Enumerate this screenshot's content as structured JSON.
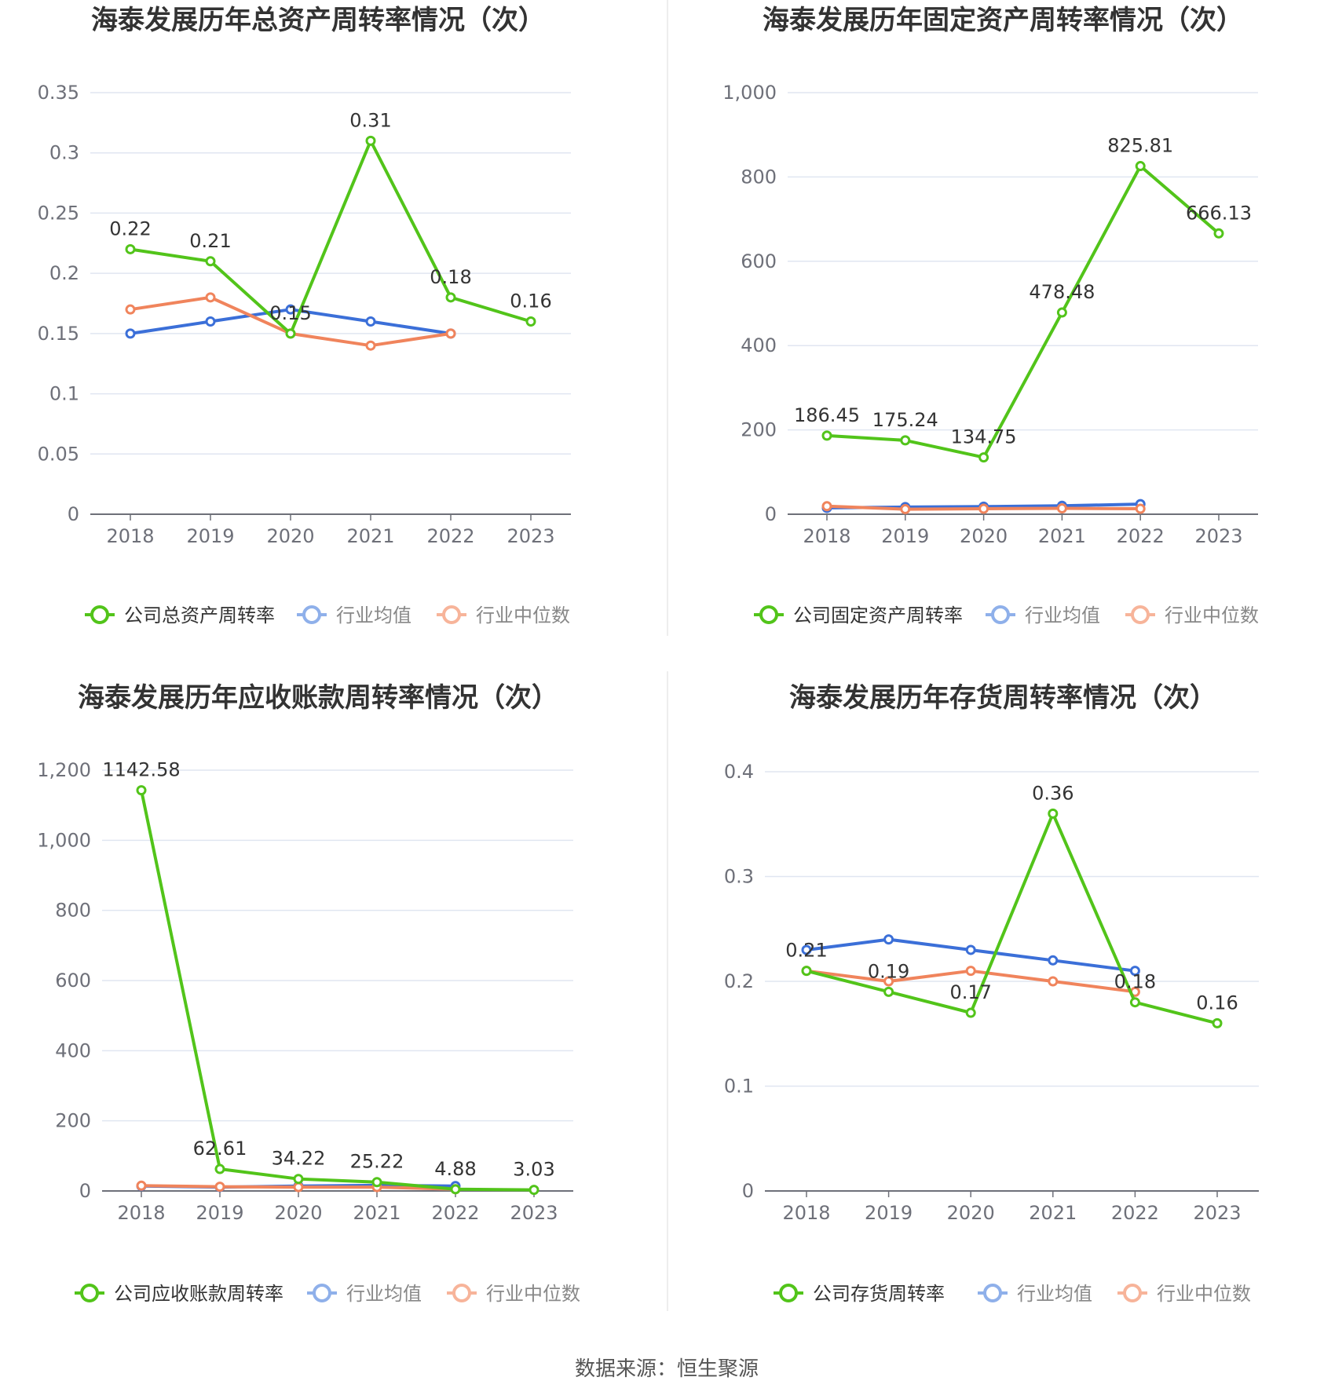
{
  "source_label": "数据来源：恒生聚源",
  "colors": {
    "company": "#52c41a",
    "avg": "#3b6fd8",
    "median": "#f0845c",
    "grid": "#e0e6f1",
    "axis": "#6e7079"
  },
  "chart_data": [
    {
      "type": "line",
      "title": "海泰发展历年总资产周转率情况（次）",
      "categories": [
        "2018",
        "2019",
        "2020",
        "2021",
        "2022",
        "2023"
      ],
      "y_ticks": [
        "0",
        "0.05",
        "0.1",
        "0.15",
        "0.2",
        "0.25",
        "0.3",
        "0.35"
      ],
      "ylim": [
        0,
        0.35
      ],
      "series": [
        {
          "name": "公司总资产周转率",
          "role": "company",
          "values": [
            0.22,
            0.21,
            0.15,
            0.31,
            0.18,
            0.16
          ],
          "labels": [
            "0.22",
            "0.21",
            "0.15",
            "0.31",
            "0.18",
            "0.16"
          ]
        },
        {
          "name": "行业均值",
          "role": "avg",
          "values": [
            0.15,
            0.16,
            0.17,
            0.16,
            0.15,
            null
          ]
        },
        {
          "name": "行业中位数",
          "role": "median",
          "values": [
            0.17,
            0.18,
            0.15,
            0.14,
            0.15,
            null
          ]
        }
      ],
      "legend": "bottom"
    },
    {
      "type": "line",
      "title": "海泰发展历年固定资产周转率情况（次）",
      "categories": [
        "2018",
        "2019",
        "2020",
        "2021",
        "2022",
        "2023"
      ],
      "y_ticks": [
        "0",
        "200",
        "400",
        "600",
        "800",
        "1,000"
      ],
      "ylim": [
        0,
        1000
      ],
      "series": [
        {
          "name": "公司固定资产周转率",
          "role": "company",
          "values": [
            186.45,
            175.24,
            134.75,
            478.48,
            825.81,
            666.13
          ],
          "labels": [
            "186.45",
            "175.24",
            "134.75",
            "478.48",
            "825.81",
            "666.13"
          ]
        },
        {
          "name": "行业均值",
          "role": "avg",
          "values": [
            15,
            17,
            18,
            20,
            24,
            null
          ]
        },
        {
          "name": "行业中位数",
          "role": "median",
          "values": [
            19,
            12,
            13,
            14,
            13,
            null
          ]
        }
      ],
      "legend": "bottom"
    },
    {
      "type": "line",
      "title": "海泰发展历年应收账款周转率情况（次）",
      "categories": [
        "2018",
        "2019",
        "2020",
        "2021",
        "2022",
        "2023"
      ],
      "y_ticks": [
        "0",
        "200",
        "400",
        "600",
        "800",
        "1,000",
        "1,200"
      ],
      "ylim": [
        0,
        1200
      ],
      "series": [
        {
          "name": "公司应收账款周转率",
          "role": "company",
          "values": [
            1142.58,
            62.61,
            34.22,
            25.22,
            4.88,
            3.03
          ],
          "labels": [
            "1142.58",
            "62.61",
            "34.22",
            "25.22",
            "4.88",
            "3.03"
          ]
        },
        {
          "name": "行业均值",
          "role": "avg",
          "values": [
            14,
            11,
            14,
            16,
            14,
            null
          ]
        },
        {
          "name": "行业中位数",
          "role": "median",
          "values": [
            15,
            12,
            11,
            11,
            5,
            null
          ]
        }
      ],
      "legend": "bottom"
    },
    {
      "type": "line",
      "title": "海泰发展历年存货周转率情况（次）",
      "categories": [
        "2018",
        "2019",
        "2020",
        "2021",
        "2022",
        "2023"
      ],
      "y_ticks": [
        "0",
        "0.1",
        "0.2",
        "0.3",
        "0.4"
      ],
      "ylim": [
        0,
        0.4
      ],
      "series": [
        {
          "name": "公司存货周转率",
          "role": "company",
          "values": [
            0.21,
            0.19,
            0.17,
            0.36,
            0.18,
            0.16
          ],
          "labels": [
            "0.21",
            "0.19",
            "0.17",
            "0.36",
            "0.18",
            "0.16"
          ]
        },
        {
          "name": "行业均值",
          "role": "avg",
          "values": [
            0.23,
            0.24,
            0.23,
            0.22,
            0.21,
            null
          ]
        },
        {
          "name": "行业中位数",
          "role": "median",
          "values": [
            0.21,
            0.2,
            0.21,
            0.2,
            0.19,
            null
          ]
        }
      ],
      "legend": "bottom"
    }
  ]
}
